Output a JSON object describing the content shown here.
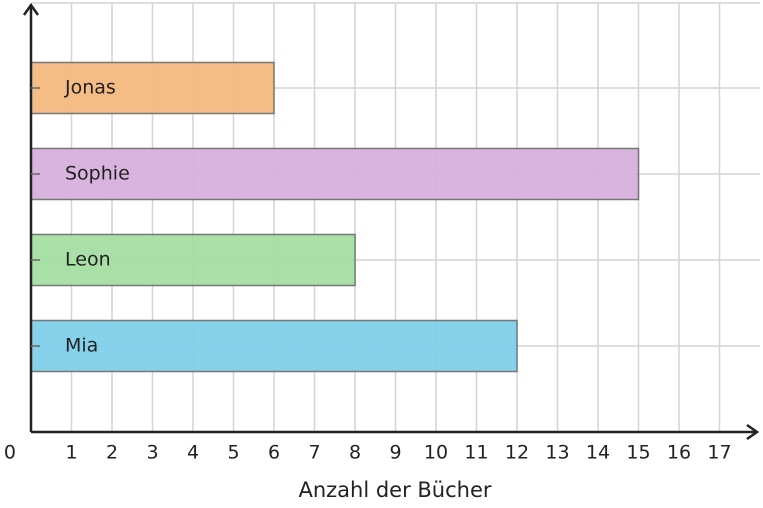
{
  "chart_data": {
    "type": "bar",
    "orientation": "horizontal",
    "categories": [
      "Jonas",
      "Sophie",
      "Leon",
      "Mia"
    ],
    "values": [
      6,
      15,
      8,
      12
    ],
    "colors": [
      "#f4b97f",
      "#d7b0dc",
      "#a3dea3",
      "#7fd0ea"
    ],
    "x_label": "Anzahl der Bücher",
    "xlim": [
      0,
      18
    ],
    "xticks": [
      0,
      1,
      2,
      3,
      4,
      5,
      6,
      7,
      8,
      9,
      10,
      11,
      12,
      13,
      14,
      15,
      16,
      17
    ],
    "grid": true
  }
}
